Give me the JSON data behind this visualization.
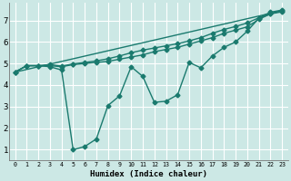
{
  "xlabel": "Humidex (Indice chaleur)",
  "background_color": "#cce8e5",
  "grid_color": "#b0d4d0",
  "line_color": "#1a7a6e",
  "xlim": [
    -0.5,
    23.5
  ],
  "ylim": [
    0.5,
    7.8
  ],
  "xticks": [
    0,
    1,
    2,
    3,
    4,
    5,
    6,
    7,
    8,
    9,
    10,
    11,
    12,
    13,
    14,
    15,
    16,
    17,
    18,
    19,
    20,
    21,
    22,
    23
  ],
  "yticks": [
    1,
    2,
    3,
    4,
    5,
    6,
    7
  ],
  "lines": [
    {
      "x": [
        0,
        1,
        2,
        3,
        4,
        5,
        6,
        7,
        8,
        9,
        10,
        11,
        12,
        13,
        14,
        15,
        16,
        17,
        18,
        19,
        20,
        21,
        22,
        23
      ],
      "y": [
        4.6,
        4.9,
        4.9,
        4.9,
        4.85,
        4.95,
        5.0,
        5.05,
        5.1,
        5.2,
        5.3,
        5.4,
        5.55,
        5.65,
        5.75,
        5.9,
        6.05,
        6.2,
        6.4,
        6.55,
        6.7,
        7.05,
        7.3,
        7.4
      ],
      "has_markers": true
    },
    {
      "x": [
        0,
        1,
        2,
        3,
        4,
        5,
        6,
        7,
        8,
        9,
        10,
        11,
        12,
        13,
        14,
        15,
        16,
        17,
        18,
        19,
        20,
        21,
        22,
        23
      ],
      "y": [
        4.6,
        4.9,
        4.9,
        4.95,
        4.88,
        4.98,
        5.05,
        5.12,
        5.22,
        5.35,
        5.5,
        5.62,
        5.72,
        5.82,
        5.92,
        6.05,
        6.2,
        6.4,
        6.58,
        6.72,
        6.88,
        7.12,
        7.38,
        7.48
      ],
      "has_markers": true
    },
    {
      "x": [
        0,
        23
      ],
      "y": [
        4.6,
        7.45
      ],
      "has_markers": false
    },
    {
      "x": [
        0,
        1,
        2,
        3,
        4,
        5,
        6,
        7,
        8,
        9,
        10,
        11,
        12,
        13,
        14,
        15,
        16,
        17,
        18,
        19,
        20,
        21,
        22,
        23
      ],
      "y": [
        4.6,
        4.9,
        4.9,
        4.85,
        4.7,
        1.0,
        1.15,
        1.5,
        3.05,
        3.5,
        4.85,
        4.4,
        3.2,
        3.25,
        3.55,
        5.05,
        4.8,
        5.35,
        5.75,
        6.0,
        6.5,
        7.1,
        7.3,
        7.45
      ],
      "has_markers": true
    }
  ],
  "marker": "D",
  "markersize": 2.5,
  "linewidth": 1.0
}
